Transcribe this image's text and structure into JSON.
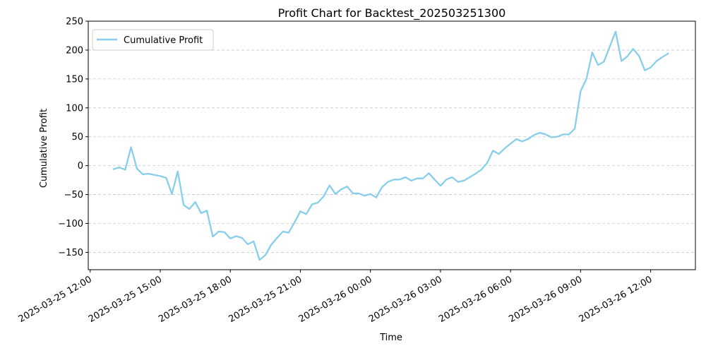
{
  "chart_data": {
    "type": "line",
    "title": "Profit Chart for Backtest_202503251300",
    "xlabel": "Time",
    "ylabel": "Cumulative Profit",
    "ylim": [
      -180,
      250
    ],
    "xlim": [
      "2025-03-25 11:55",
      "2025-03-26 13:55"
    ],
    "grid": "y-only, dashed",
    "legend_position": "top-left",
    "x_ticks": [
      "2025-03-25 12:00",
      "2025-03-25 15:00",
      "2025-03-25 18:00",
      "2025-03-25 21:00",
      "2025-03-26 00:00",
      "2025-03-26 03:00",
      "2025-03-26 06:00",
      "2025-03-26 09:00",
      "2025-03-26 12:00"
    ],
    "y_ticks": [
      -150,
      -100,
      -50,
      0,
      50,
      100,
      150,
      200,
      250
    ],
    "series": [
      {
        "name": "Cumulative Profit",
        "color": "#87CEEB",
        "points": [
          [
            "2025-03-25 13:00",
            -6
          ],
          [
            "2025-03-25 13:15",
            -3
          ],
          [
            "2025-03-25 13:30",
            -7
          ],
          [
            "2025-03-25 13:45",
            32
          ],
          [
            "2025-03-25 14:00",
            -5
          ],
          [
            "2025-03-25 14:15",
            -15
          ],
          [
            "2025-03-25 14:30",
            -14
          ],
          [
            "2025-03-25 14:45",
            -16
          ],
          [
            "2025-03-25 15:00",
            -18
          ],
          [
            "2025-03-25 15:15",
            -21
          ],
          [
            "2025-03-25 15:30",
            -49
          ],
          [
            "2025-03-25 15:45",
            -10
          ],
          [
            "2025-03-25 16:00",
            -68
          ],
          [
            "2025-03-25 16:15",
            -75
          ],
          [
            "2025-03-25 16:30",
            -63
          ],
          [
            "2025-03-25 16:45",
            -82
          ],
          [
            "2025-03-25 17:00",
            -78
          ],
          [
            "2025-03-25 17:15",
            -123
          ],
          [
            "2025-03-25 17:30",
            -114
          ],
          [
            "2025-03-25 17:45",
            -115
          ],
          [
            "2025-03-25 18:00",
            -126
          ],
          [
            "2025-03-25 18:15",
            -122
          ],
          [
            "2025-03-25 18:30",
            -125
          ],
          [
            "2025-03-25 18:45",
            -136
          ],
          [
            "2025-03-25 19:00",
            -131
          ],
          [
            "2025-03-25 19:15",
            -163
          ],
          [
            "2025-03-25 19:30",
            -155
          ],
          [
            "2025-03-25 19:45",
            -137
          ],
          [
            "2025-03-25 20:00",
            -125
          ],
          [
            "2025-03-25 20:15",
            -114
          ],
          [
            "2025-03-25 20:30",
            -116
          ],
          [
            "2025-03-25 20:45",
            -98
          ],
          [
            "2025-03-25 21:00",
            -79
          ],
          [
            "2025-03-25 21:15",
            -84
          ],
          [
            "2025-03-25 21:30",
            -67
          ],
          [
            "2025-03-25 21:45",
            -64
          ],
          [
            "2025-03-25 22:00",
            -53
          ],
          [
            "2025-03-25 22:15",
            -34
          ],
          [
            "2025-03-25 22:30",
            -49
          ],
          [
            "2025-03-25 22:45",
            -41
          ],
          [
            "2025-03-25 23:00",
            -36
          ],
          [
            "2025-03-25 23:15",
            -48
          ],
          [
            "2025-03-25 23:30",
            -48
          ],
          [
            "2025-03-25 23:45",
            -52
          ],
          [
            "2025-03-26 00:00",
            -49
          ],
          [
            "2025-03-26 00:15",
            -55
          ],
          [
            "2025-03-26 00:30",
            -37
          ],
          [
            "2025-03-26 00:45",
            -28
          ],
          [
            "2025-03-26 01:00",
            -24
          ],
          [
            "2025-03-26 01:15",
            -24
          ],
          [
            "2025-03-26 01:30",
            -20
          ],
          [
            "2025-03-26 01:45",
            -26
          ],
          [
            "2025-03-26 02:00",
            -22
          ],
          [
            "2025-03-26 02:15",
            -22
          ],
          [
            "2025-03-26 02:30",
            -13
          ],
          [
            "2025-03-26 02:45",
            -24
          ],
          [
            "2025-03-26 03:00",
            -35
          ],
          [
            "2025-03-26 03:15",
            -24
          ],
          [
            "2025-03-26 03:30",
            -20
          ],
          [
            "2025-03-26 03:45",
            -28
          ],
          [
            "2025-03-26 04:00",
            -26
          ],
          [
            "2025-03-26 04:15",
            -20
          ],
          [
            "2025-03-26 04:30",
            -14
          ],
          [
            "2025-03-26 04:45",
            -7
          ],
          [
            "2025-03-26 05:00",
            5
          ],
          [
            "2025-03-26 05:15",
            26
          ],
          [
            "2025-03-26 05:30",
            20
          ],
          [
            "2025-03-26 05:45",
            30
          ],
          [
            "2025-03-26 06:00",
            38
          ],
          [
            "2025-03-26 06:15",
            46
          ],
          [
            "2025-03-26 06:30",
            42
          ],
          [
            "2025-03-26 06:45",
            46
          ],
          [
            "2025-03-26 07:00",
            53
          ],
          [
            "2025-03-26 07:15",
            57
          ],
          [
            "2025-03-26 07:30",
            54
          ],
          [
            "2025-03-26 07:45",
            49
          ],
          [
            "2025-03-26 08:00",
            50
          ],
          [
            "2025-03-26 08:15",
            54
          ],
          [
            "2025-03-26 08:30",
            54
          ],
          [
            "2025-03-26 08:45",
            64
          ],
          [
            "2025-03-26 09:00",
            129
          ],
          [
            "2025-03-26 09:15",
            150
          ],
          [
            "2025-03-26 09:30",
            196
          ],
          [
            "2025-03-26 09:45",
            174
          ],
          [
            "2025-03-26 10:00",
            180
          ],
          [
            "2025-03-26 10:15",
            206
          ],
          [
            "2025-03-26 10:30",
            232
          ],
          [
            "2025-03-26 10:45",
            181
          ],
          [
            "2025-03-26 11:00",
            189
          ],
          [
            "2025-03-26 11:15",
            202
          ],
          [
            "2025-03-26 11:30",
            190
          ],
          [
            "2025-03-26 11:45",
            165
          ],
          [
            "2025-03-26 12:00",
            170
          ],
          [
            "2025-03-26 12:15",
            181
          ],
          [
            "2025-03-26 12:30",
            188
          ],
          [
            "2025-03-26 12:45",
            194
          ]
        ]
      }
    ]
  }
}
